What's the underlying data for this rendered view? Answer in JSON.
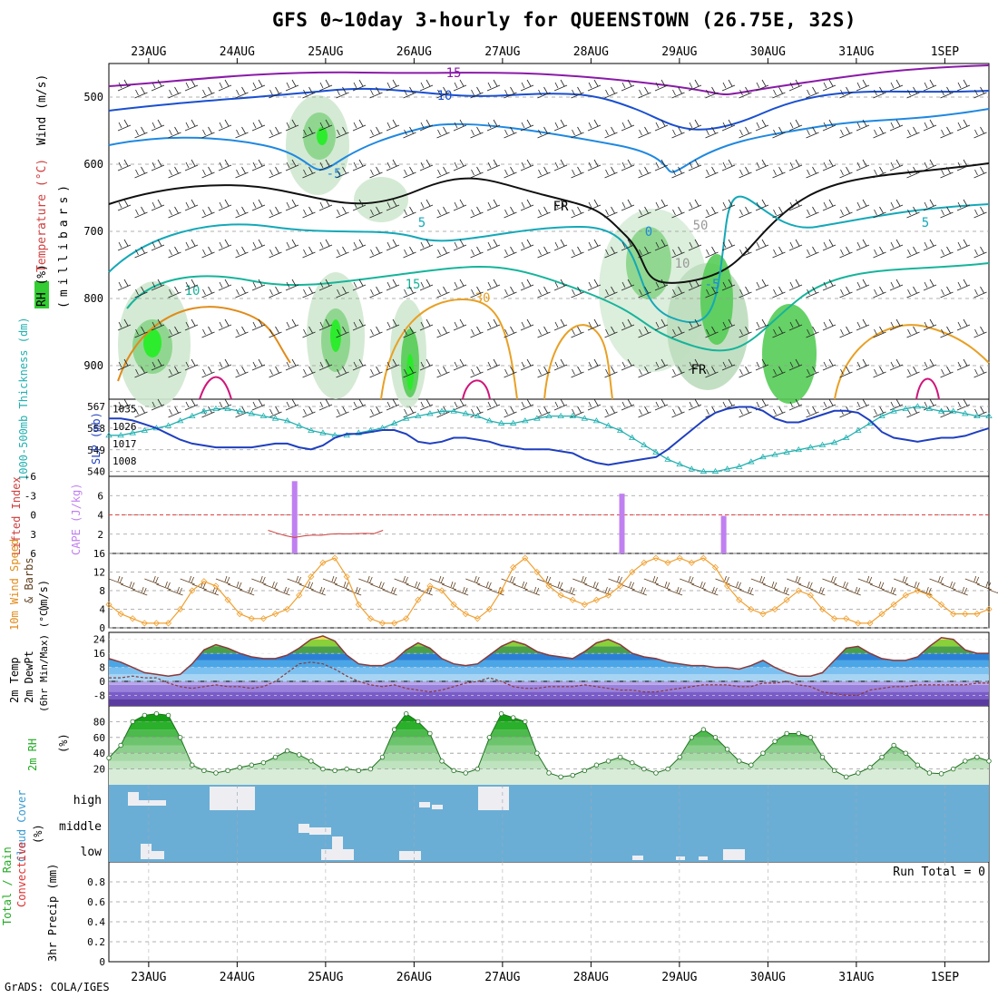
{
  "title": "GFS 0~10day 3-hourly for QUEENSTOWN (26.75E, 32S)",
  "credit": "GrADS: COLA/IGES",
  "run_total_label": "Run Total = 0",
  "colors": {
    "rh_green": "#33cc33",
    "slp_line": "#1f3fbf",
    "thickness_line": "#22b0b0",
    "cape_bar": "#c080f0",
    "lifted_index": "#d04040",
    "wind_speed": "#f0a030",
    "barb": "#604020",
    "temp_line": "#8b3a3a",
    "cloud_bg": "#6aaed6",
    "precip_rain": "#22aa22",
    "precip_conv": "#e03030"
  },
  "chart_data": [
    {
      "id": "upper_air",
      "type": "heatmap",
      "ylabel_parts": [
        "RH (%)",
        "Temperature (°C)",
        "Wind (m/s)"
      ],
      "ylabel_sub": "(millibars)",
      "yticks": [
        500,
        600,
        700,
        800,
        900
      ],
      "ylim": [
        950,
        450
      ],
      "contour_labels": [
        "15",
        "10",
        "5",
        "0",
        "-5",
        "FR",
        "10",
        "5",
        "15",
        "30",
        "50",
        "10",
        "-5",
        "FR"
      ],
      "grid": true
    },
    {
      "id": "thickness_slp",
      "type": "line",
      "ylabel_left": "1000-500mb Thickness (dm)",
      "ylabel_right": "SLP (mb)",
      "left_ticks": [
        "567",
        "558",
        "549",
        "540"
      ],
      "right_ticks": [
        "1035",
        "1026",
        "1017",
        "1008"
      ],
      "series": [
        {
          "name": "Thickness",
          "values": [
            555,
            555,
            556,
            557,
            558,
            559,
            561,
            563,
            565,
            566,
            566,
            565,
            564,
            563,
            562,
            561,
            559,
            557,
            556,
            555,
            555,
            556,
            557,
            558,
            560,
            562,
            563,
            564,
            565,
            565,
            564,
            563,
            561,
            560,
            560,
            561,
            562,
            563,
            563,
            563,
            562,
            561,
            559,
            557,
            554,
            551,
            548,
            545,
            543,
            541,
            540,
            540,
            541,
            542,
            544,
            546,
            547,
            548,
            549,
            550,
            551,
            552,
            554,
            557,
            560,
            563,
            565,
            566,
            567,
            566,
            565,
            565,
            564,
            563,
            563
          ]
        },
        {
          "name": "SLP",
          "values": [
            1030,
            1030,
            1029,
            1027,
            1025,
            1022,
            1019,
            1017,
            1016,
            1015,
            1015,
            1015,
            1015,
            1016,
            1017,
            1017,
            1015,
            1014,
            1016,
            1020,
            1022,
            1022,
            1023,
            1024,
            1024,
            1022,
            1018,
            1017,
            1018,
            1020,
            1020,
            1019,
            1018,
            1016,
            1015,
            1014,
            1014,
            1014,
            1013,
            1012,
            1009,
            1007,
            1006,
            1007,
            1008,
            1009,
            1010,
            1014,
            1019,
            1024,
            1029,
            1033,
            1035,
            1036,
            1036,
            1034,
            1030,
            1028,
            1028,
            1030,
            1032,
            1034,
            1034,
            1033,
            1029,
            1023,
            1020,
            1019,
            1018,
            1019,
            1020,
            1020,
            1021,
            1023,
            1025
          ]
        }
      ]
    },
    {
      "id": "li_cape",
      "type": "bar",
      "ylabel_left": "Lifted Index",
      "ylabel_right": "CAPE (J/kg)",
      "left_ticks": [
        "-6",
        "-3",
        "0",
        "3",
        "6"
      ],
      "right_ticks": [
        "6",
        "4",
        "2"
      ],
      "cape_bars": [
        {
          "day": 24.65,
          "value": 7.5
        },
        {
          "day": 28.35,
          "value": 6.2
        },
        {
          "day": 29.5,
          "value": 3.9
        }
      ],
      "lifted_index": {
        "days": [
          24.35,
          24.45,
          24.55,
          24.65,
          24.75,
          24.85,
          24.95,
          25.05,
          25.15,
          25.25,
          25.35,
          25.45,
          25.55,
          25.65
        ],
        "values": [
          6.0,
          4.5,
          3.2,
          2.3,
          3.1,
          3.5,
          3.4,
          4.0,
          4.2,
          4.1,
          4.3,
          4.4,
          4.3,
          6.0
        ]
      }
    },
    {
      "id": "wind10m",
      "type": "line",
      "ylabel_parts": [
        "10m Wind Speed",
        "& Barbs",
        "(m/s)"
      ],
      "yticks": [
        0,
        4,
        8,
        12,
        16
      ],
      "ylim": [
        0,
        16
      ],
      "series": [
        {
          "name": "Speed",
          "values": [
            5,
            3,
            2,
            1,
            1,
            1,
            4,
            8,
            10,
            9,
            6,
            3,
            2,
            2,
            3,
            4,
            7,
            11,
            14,
            15,
            11,
            5,
            2,
            1,
            1,
            2,
            6,
            9,
            8,
            5,
            3,
            2,
            4,
            8,
            13,
            15,
            12,
            9,
            7,
            6,
            5,
            6,
            7,
            9,
            12,
            14,
            15,
            14,
            15,
            14,
            15,
            13,
            9,
            6,
            4,
            3,
            4,
            6,
            8,
            7,
            4,
            2,
            2,
            1,
            1,
            3,
            5,
            7,
            8,
            7,
            5,
            3,
            3,
            3,
            4
          ]
        }
      ]
    },
    {
      "id": "temp2m",
      "type": "area",
      "ylabel_parts": [
        "2m Temp",
        "2m DewPt",
        "(6hr Min/Max) (°C)"
      ],
      "yticks": [
        24,
        16,
        8,
        0,
        -8
      ],
      "ylim": [
        -14,
        28
      ],
      "series": [
        {
          "name": "Temp",
          "values": [
            13,
            11,
            8,
            5,
            4,
            3,
            4,
            10,
            18,
            21,
            19,
            16,
            14,
            13,
            13,
            15,
            19,
            24,
            26,
            23,
            15,
            10,
            9,
            9,
            12,
            18,
            22,
            19,
            13,
            10,
            9,
            10,
            15,
            20,
            23,
            21,
            17,
            15,
            14,
            13,
            17,
            22,
            24,
            21,
            16,
            14,
            13,
            11,
            10,
            9,
            9,
            8,
            8,
            7,
            9,
            12,
            8,
            5,
            3,
            3,
            5,
            12,
            19,
            20,
            16,
            13,
            12,
            12,
            14,
            20,
            25,
            24,
            18,
            16,
            16
          ]
        },
        {
          "name": "DewPt",
          "values": [
            2,
            2,
            3,
            2,
            2,
            -1,
            -3,
            -4,
            -3,
            -2,
            -3,
            -3,
            -4,
            -3,
            0,
            5,
            10,
            11,
            10,
            7,
            3,
            0,
            -2,
            -3,
            -2,
            -4,
            -5,
            -6,
            -5,
            -3,
            -1,
            0,
            2,
            0,
            -3,
            -4,
            -4,
            -3,
            -3,
            -3,
            -2,
            -3,
            -4,
            -5,
            -5,
            -6,
            -6,
            -5,
            -4,
            -3,
            -2,
            -2,
            -2,
            -3,
            -3,
            -1,
            -1,
            0,
            -2,
            -3,
            -6,
            -7,
            -8,
            -8,
            -5,
            -4,
            -3,
            -3,
            -2,
            -2,
            -2,
            -2,
            -2,
            -1,
            -1
          ]
        }
      ]
    },
    {
      "id": "rh2m",
      "type": "area",
      "ylabel_parts": [
        "2m RH",
        "(%)"
      ],
      "yticks": [
        20,
        40,
        60,
        80
      ],
      "ylim": [
        0,
        100
      ],
      "series": [
        {
          "name": "RH",
          "values": [
            34,
            50,
            80,
            88,
            90,
            88,
            60,
            25,
            18,
            15,
            18,
            22,
            25,
            28,
            35,
            43,
            38,
            30,
            20,
            18,
            20,
            18,
            20,
            35,
            70,
            90,
            80,
            65,
            30,
            18,
            15,
            20,
            60,
            90,
            85,
            80,
            40,
            15,
            10,
            12,
            18,
            25,
            30,
            35,
            28,
            20,
            15,
            20,
            35,
            60,
            70,
            60,
            45,
            30,
            25,
            40,
            55,
            65,
            65,
            60,
            35,
            18,
            10,
            15,
            22,
            35,
            50,
            40,
            25,
            15,
            14,
            20,
            30,
            35,
            30
          ]
        }
      ]
    },
    {
      "id": "cloud",
      "type": "bar",
      "ylabel_parts": [
        "Cloud Cover",
        "(%)"
      ],
      "yticks": [
        "high",
        "middle",
        "low"
      ]
    },
    {
      "id": "precip",
      "type": "bar",
      "ylabel_parts": [
        "Total / Rain",
        "Convective",
        "3hr Precip (mm)"
      ],
      "yticks": [
        0,
        0.2,
        0.4,
        0.6,
        0.8
      ],
      "ylim": [
        0,
        1
      ]
    }
  ],
  "dates": [
    "23AUG",
    "24AUG",
    "25AUG",
    "26AUG",
    "27AUG",
    "28AUG",
    "29AUG",
    "30AUG",
    "31AUG",
    "1SEP"
  ]
}
